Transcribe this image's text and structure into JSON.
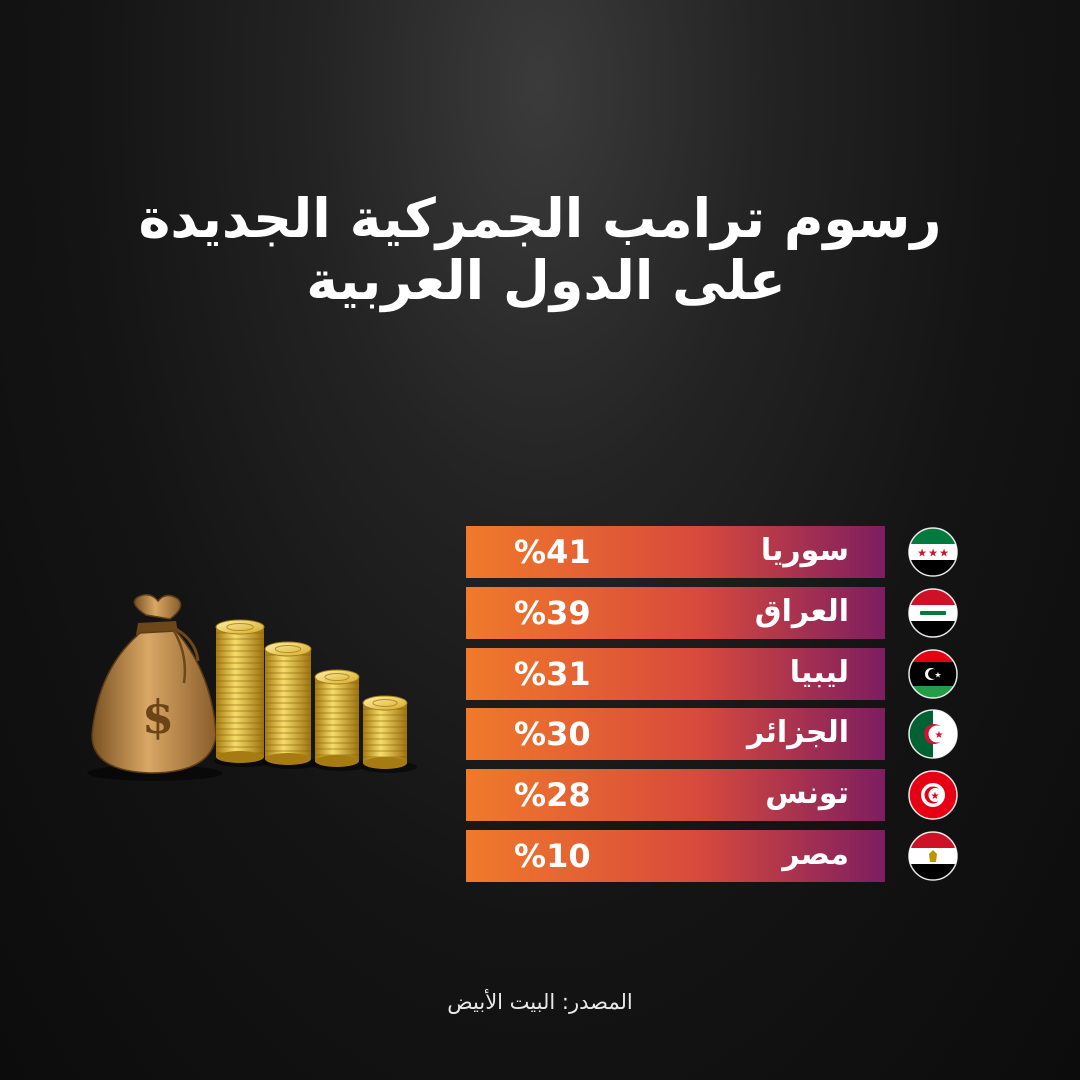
{
  "header": {
    "title_line1": "رسوم ترامب الجمركية الجديدة",
    "title_line2": "على الدول العربية"
  },
  "illustration": {
    "bag_icon": "money-bag-icon",
    "coins_icon": "gold-coin-stack-icon",
    "bag_symbol": "$"
  },
  "chart_data": {
    "type": "bar",
    "orientation": "horizontal",
    "title": "رسوم ترامب الجمركية الجديدة على الدول العربية",
    "categories": [
      "سوريا",
      "العراق",
      "ليبيا",
      "الجزائر",
      "تونس",
      "مصر"
    ],
    "values": [
      41,
      39,
      31,
      30,
      28,
      10
    ],
    "value_labels": [
      "%41",
      "%39",
      "%31",
      "%30",
      "%28",
      "%10"
    ],
    "unit": "%",
    "bar_gradient": [
      "#f07a2a",
      "#d84a3c",
      "#7e1d60"
    ],
    "flags": [
      "syria-flag-icon",
      "iraq-flag-icon",
      "libya-flag-icon",
      "algeria-flag-icon",
      "tunisia-flag-icon",
      "egypt-flag-icon"
    ]
  },
  "footer": {
    "source": "المصدر: البيت الأبيض"
  }
}
